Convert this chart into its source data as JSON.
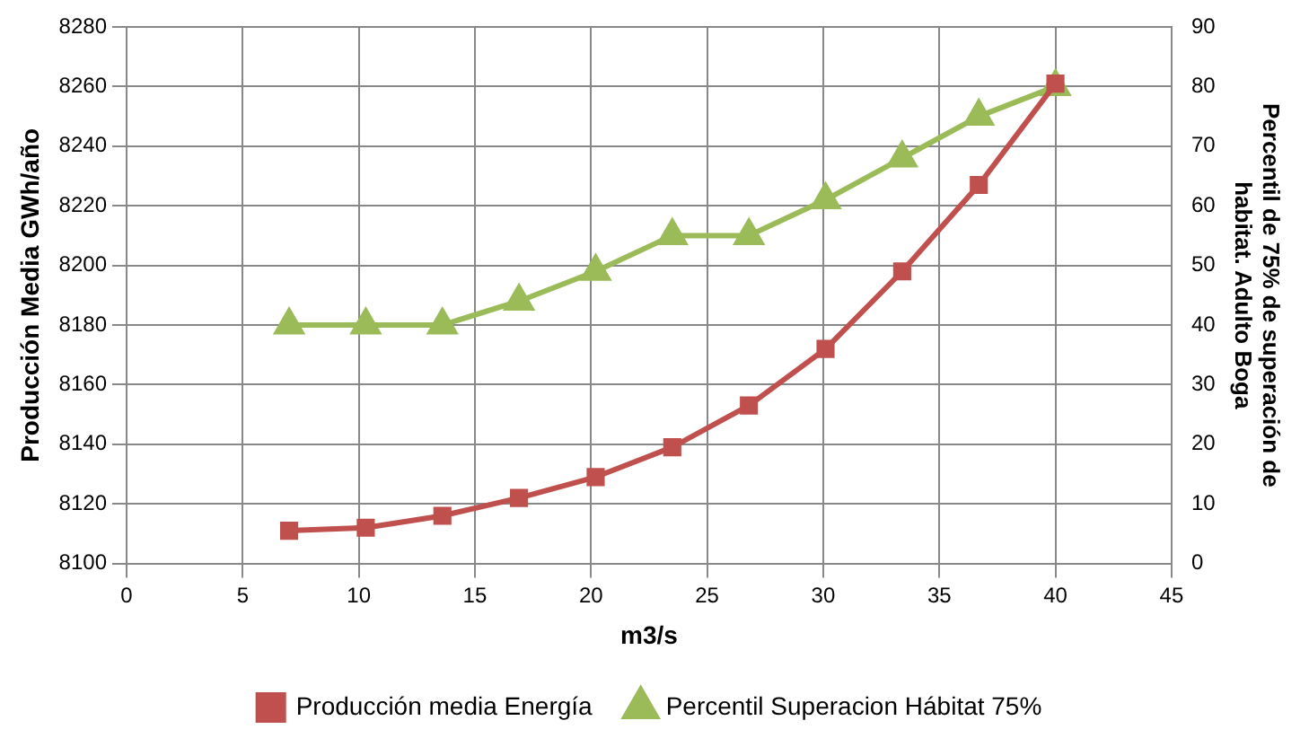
{
  "chart_data": {
    "type": "line",
    "xlabel": "m3/s",
    "ylabel": "Producción Media GWh/año",
    "y2label": "Percentil de 75% de superación de habitat. Adulto Boga",
    "xlim": [
      0,
      45
    ],
    "xticks": [
      0,
      5,
      10,
      15,
      20,
      25,
      30,
      35,
      40,
      45
    ],
    "ylim": [
      8100,
      8280
    ],
    "yticks": [
      8100,
      8120,
      8140,
      8160,
      8180,
      8200,
      8220,
      8240,
      8260,
      8280
    ],
    "y2lim": [
      0,
      90
    ],
    "y2ticks": [
      0,
      10,
      20,
      30,
      40,
      50,
      60,
      70,
      80,
      90
    ],
    "x": [
      7,
      10.3,
      13.6,
      16.9,
      20.2,
      23.5,
      26.8,
      30.1,
      33.4,
      36.7,
      40
    ],
    "series": [
      {
        "name": "Producción media Energía",
        "color": "#c0504d",
        "marker": "square",
        "values": [
          8111,
          8112,
          8116,
          8122,
          8129,
          8139,
          8153,
          8172,
          8198,
          8227,
          8261
        ]
      },
      {
        "name": "Percentil Superacion Hábitat 75%",
        "color": "#9bbb59",
        "marker": "triangle",
        "axis": "y2",
        "values": [
          40,
          40,
          40,
          44,
          49,
          55,
          55,
          61,
          68,
          75,
          80
        ]
      }
    ],
    "grid": true,
    "legend": "bottom",
    "line_style": "solid"
  }
}
